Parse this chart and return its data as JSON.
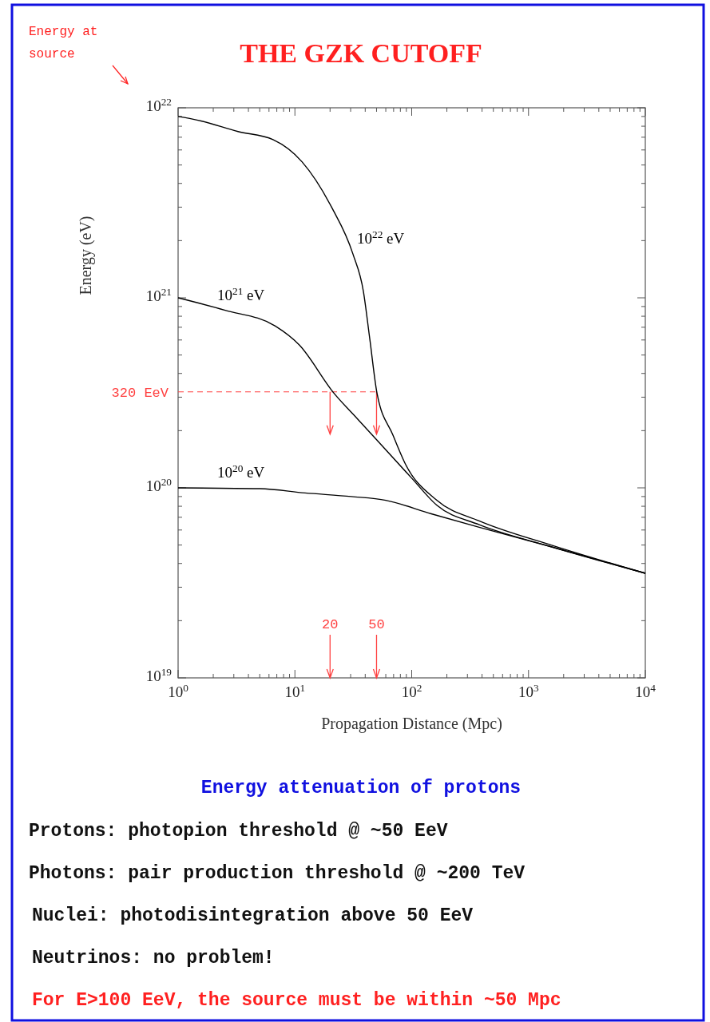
{
  "chart_data": {
    "type": "line",
    "title": "THE GZK CUTOFF",
    "subtitle": "Energy attenuation of protons",
    "xlabel": "Propagation Distance (Mpc)",
    "ylabel": "Energy (eV)",
    "log": "xy",
    "xlim": [
      1,
      10000
    ],
    "ylim": [
      1e+19,
      1e+22
    ],
    "xticks": [
      {
        "value": 1,
        "label": "10$^{0}$"
      },
      {
        "value": 2,
        "label": null
      },
      {
        "value": 3,
        "label": null
      },
      {
        "value": 4,
        "label": null
      },
      {
        "value": 5,
        "label": null
      },
      {
        "value": 6,
        "label": null
      },
      {
        "value": 7,
        "label": null
      },
      {
        "value": 8,
        "label": null
      },
      {
        "value": 9,
        "label": null
      },
      {
        "value": 10,
        "label": "10$^{1}$"
      },
      {
        "value": 20,
        "label": null
      },
      {
        "value": 30,
        "label": null
      },
      {
        "value": 40,
        "label": null
      },
      {
        "value": 50,
        "label": null
      },
      {
        "value": 60,
        "label": null
      },
      {
        "value": 70,
        "label": null
      },
      {
        "value": 80,
        "label": null
      },
      {
        "value": 90,
        "label": null
      },
      {
        "value": 100,
        "label": "10$^{2}$"
      },
      {
        "value": 200,
        "label": null
      },
      {
        "value": 300,
        "label": null
      },
      {
        "value": 400,
        "label": null
      },
      {
        "value": 500,
        "label": null
      },
      {
        "value": 600,
        "label": null
      },
      {
        "value": 700,
        "label": null
      },
      {
        "value": 800,
        "label": null
      },
      {
        "value": 900,
        "label": null
      },
      {
        "value": 1000,
        "label": "10$^{3}$"
      },
      {
        "value": 2000,
        "label": null
      },
      {
        "value": 3000,
        "label": null
      },
      {
        "value": 4000,
        "label": null
      },
      {
        "value": 5000,
        "label": null
      },
      {
        "value": 6000,
        "label": null
      },
      {
        "value": 7000,
        "label": null
      },
      {
        "value": 8000,
        "label": null
      },
      {
        "value": 9000,
        "label": null
      },
      {
        "value": 10000,
        "label": "10$^{4}$"
      }
    ],
    "yticks": [
      {
        "value": 1e+19,
        "label": "10$^{19}$"
      },
      {
        "value": 2e+19,
        "label": null
      },
      {
        "value": 3e+19,
        "label": null
      },
      {
        "value": 4e+19,
        "label": null
      },
      {
        "value": 5e+19,
        "label": null
      },
      {
        "value": 6e+19,
        "label": null
      },
      {
        "value": 7e+19,
        "label": null
      },
      {
        "value": 8e+19,
        "label": null
      },
      {
        "value": 9e+19,
        "label": null
      },
      {
        "value": 1e+20,
        "label": "10$^{20}$"
      },
      {
        "value": 2e+20,
        "label": null
      },
      {
        "value": 3e+20,
        "label": null
      },
      {
        "value": 4e+20,
        "label": null
      },
      {
        "value": 5e+20,
        "label": null
      },
      {
        "value": 6e+20,
        "label": null
      },
      {
        "value": 7e+20,
        "label": null
      },
      {
        "value": 8e+20,
        "label": null
      },
      {
        "value": 9e+20,
        "label": null
      },
      {
        "value": 1e+21,
        "label": "10$^{21}$"
      },
      {
        "value": 2e+21,
        "label": null
      },
      {
        "value": 3e+21,
        "label": null
      },
      {
        "value": 4e+21,
        "label": null
      },
      {
        "value": 5e+21,
        "label": null
      },
      {
        "value": 6e+21,
        "label": null
      },
      {
        "value": 7e+21,
        "label": null
      },
      {
        "value": 8e+21,
        "label": null
      },
      {
        "value": 9e+21,
        "label": null
      },
      {
        "value": 1e+22,
        "label": "10$^{22}$"
      }
    ],
    "series": [
      {
        "name": "10$^{22}$ eV",
        "color": "#000000",
        "x": [
          1,
          1.48,
          3.26,
          6.5,
          11.5,
          20.6,
          31.4,
          38.6,
          43.8,
          50.4,
          69,
          87.5,
          164,
          378,
          1560,
          10000
        ],
        "values": [
          9e+21,
          8.6e+21,
          7.5e+21,
          6.8e+21,
          5.2e+21,
          3e+21,
          1.7e+21,
          1.08e+21,
          6.05e+20,
          3.16e+20,
          1.9e+20,
          1.35e+20,
          8.6e+19,
          6.7e+19,
          5e+19,
          3.55e+19
        ]
      },
      {
        "name": "10$^{21}$ eV",
        "color": "#000000",
        "x": [
          1,
          2.53,
          6.8,
          10.9,
          21.5,
          34.5,
          99.3,
          164,
          378,
          1560,
          10000
        ],
        "values": [
          1e+21,
          8.6e+20,
          7.1e+20,
          5.65e+20,
          3.16e+20,
          2.3e+20,
          1.13e+20,
          8.1e+19,
          6.4e+19,
          4.9e+19,
          3.55e+19
        ]
      },
      {
        "name": "10$^{20}$ eV",
        "color": "#000000",
        "x": [
          1,
          5,
          12.2,
          30.4,
          60,
          147,
          378,
          1560,
          10000
        ],
        "values": [
          1e+20,
          9.9e+19,
          9.4e+19,
          9e+19,
          8.6e+19,
          7.3e+19,
          6.2e+19,
          4.9e+19,
          3.55e+19
        ]
      }
    ],
    "ref_lines": [
      {
        "axis": "y",
        "value": 3.2e+20,
        "label": "320 EeV",
        "color": "#ff4040",
        "line_style": "dashed"
      },
      {
        "axis": "x",
        "value": 20,
        "label": "20",
        "color": "#ff4040"
      },
      {
        "axis": "x",
        "value": 50,
        "label": "50",
        "color": "#ff4040"
      }
    ],
    "annotations": [
      "Energy at source",
      "Protons: photopion threshold @ ~50 EeV",
      "Photons: pair production threshold @ ~200 TeV",
      "Nuclei: photodisintegration above 50 EeV",
      "Neutrinos: no problem!",
      "For E>100 EeV, the source must be within ~50 Mpc"
    ]
  }
}
